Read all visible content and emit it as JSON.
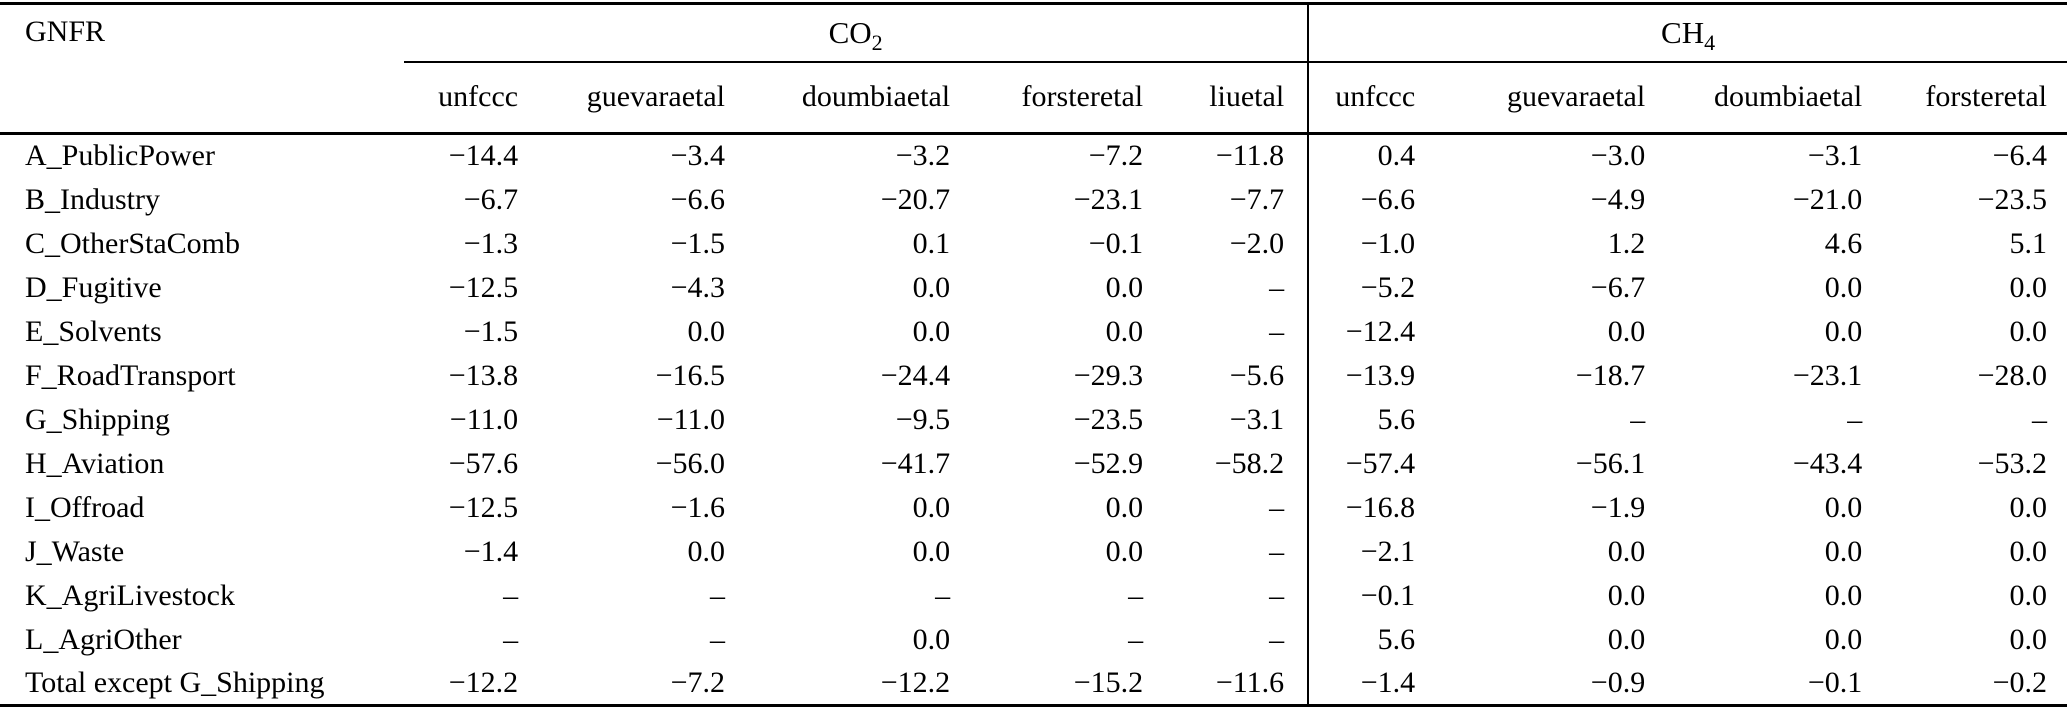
{
  "table": {
    "row_header": "GNFR",
    "groups": [
      {
        "formula": "CO",
        "subscript": "2",
        "columns": [
          "unfccc",
          "guevaraetal",
          "doumbiaetal",
          "forsteretal",
          "liuetal"
        ]
      },
      {
        "formula": "CH",
        "subscript": "4",
        "columns": [
          "unfccc",
          "guevaraetal",
          "doumbiaetal",
          "forsteretal"
        ]
      }
    ],
    "missing_marker": "–",
    "rows": [
      {
        "label": "A_PublicPower",
        "co2": [
          "−14.4",
          "−3.4",
          "−3.2",
          "−7.2",
          "−11.8"
        ],
        "ch4": [
          "0.4",
          "−3.0",
          "−3.1",
          "−6.4"
        ]
      },
      {
        "label": "B_Industry",
        "co2": [
          "−6.7",
          "−6.6",
          "−20.7",
          "−23.1",
          "−7.7"
        ],
        "ch4": [
          "−6.6",
          "−4.9",
          "−21.0",
          "−23.5"
        ]
      },
      {
        "label": "C_OtherStaComb",
        "co2": [
          "−1.3",
          "−1.5",
          "0.1",
          "−0.1",
          "−2.0"
        ],
        "ch4": [
          "−1.0",
          "1.2",
          "4.6",
          "5.1"
        ]
      },
      {
        "label": "D_Fugitive",
        "co2": [
          "−12.5",
          "−4.3",
          "0.0",
          "0.0",
          "–"
        ],
        "ch4": [
          "−5.2",
          "−6.7",
          "0.0",
          "0.0"
        ]
      },
      {
        "label": "E_Solvents",
        "co2": [
          "−1.5",
          "0.0",
          "0.0",
          "0.0",
          "–"
        ],
        "ch4": [
          "−12.4",
          "0.0",
          "0.0",
          "0.0"
        ]
      },
      {
        "label": "F_RoadTransport",
        "co2": [
          "−13.8",
          "−16.5",
          "−24.4",
          "−29.3",
          "−5.6"
        ],
        "ch4": [
          "−13.9",
          "−18.7",
          "−23.1",
          "−28.0"
        ]
      },
      {
        "label": "G_Shipping",
        "co2": [
          "−11.0",
          "−11.0",
          "−9.5",
          "−23.5",
          "−3.1"
        ],
        "ch4": [
          "5.6",
          "–",
          "–",
          "–"
        ]
      },
      {
        "label": "H_Aviation",
        "co2": [
          "−57.6",
          "−56.0",
          "−41.7",
          "−52.9",
          "−58.2"
        ],
        "ch4": [
          "−57.4",
          "−56.1",
          "−43.4",
          "−53.2"
        ]
      },
      {
        "label": "I_Offroad",
        "co2": [
          "−12.5",
          "−1.6",
          "0.0",
          "0.0",
          "–"
        ],
        "ch4": [
          "−16.8",
          "−1.9",
          "0.0",
          "0.0"
        ]
      },
      {
        "label": "J_Waste",
        "co2": [
          "−1.4",
          "0.0",
          "0.0",
          "0.0",
          "–"
        ],
        "ch4": [
          "−2.1",
          "0.0",
          "0.0",
          "0.0"
        ]
      },
      {
        "label": "K_AgriLivestock",
        "co2": [
          "–",
          "–",
          "–",
          "–",
          "–"
        ],
        "ch4": [
          "−0.1",
          "0.0",
          "0.0",
          "0.0"
        ]
      },
      {
        "label": "L_AgriOther",
        "co2": [
          "–",
          "–",
          "0.0",
          "–",
          "–"
        ],
        "ch4": [
          "5.6",
          "0.0",
          "0.0",
          "0.0"
        ]
      },
      {
        "label": "Total except G_Shipping",
        "co2": [
          "−12.2",
          "−7.2",
          "−12.2",
          "−15.2",
          "−11.6"
        ],
        "ch4": [
          "−1.4",
          "−0.9",
          "−0.1",
          "−0.2"
        ]
      }
    ]
  }
}
